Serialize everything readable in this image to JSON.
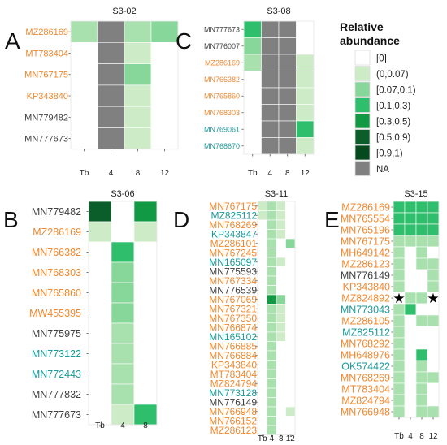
{
  "colors": {
    "c0": "#ffffff",
    "c1": "#cdebc7",
    "c2": "#a8e0ae",
    "c3": "#88d79a",
    "c4": "#2fbe6b",
    "c5": "#119944",
    "c6": "#0b5e2a",
    "na": "#808080",
    "orange": "#f0892f",
    "teal": "#1a9a9a",
    "black": "#404040"
  },
  "legend": {
    "title_line1": "Relative",
    "title_line2": "abundance",
    "items": [
      {
        "label": "[0]",
        "color": "c0"
      },
      {
        "label": "(0,0.07)",
        "color": "c1"
      },
      {
        "label": "[0.07,0.1)",
        "color": "c3"
      },
      {
        "label": "[0.1,0.3)",
        "color": "c4"
      },
      {
        "label": "[0.3,0.5)",
        "color": "c5"
      },
      {
        "label": "[0.5,0.9)",
        "color": "c6"
      },
      {
        "label": "[0.9,1)",
        "color": "#044a1e"
      },
      {
        "label": "NA",
        "color": "na"
      }
    ]
  },
  "panels": [
    {
      "letter": "A",
      "title": "S3-02",
      "columns": [
        "Tb",
        "4",
        "8",
        "12"
      ],
      "rows": [
        {
          "label": "MZ286169",
          "color": "orange",
          "cells": [
            "c2",
            "na",
            "c2",
            "c3"
          ]
        },
        {
          "label": "MT783404",
          "color": "orange",
          "cells": [
            "c0",
            "na",
            "c1",
            "c0"
          ]
        },
        {
          "label": "MN767175",
          "color": "orange",
          "cells": [
            "c0",
            "na",
            "c3",
            "c0"
          ]
        },
        {
          "label": "KP343840",
          "color": "orange",
          "cells": [
            "c0",
            "na",
            "c1",
            "c0"
          ]
        },
        {
          "label": "MN779482",
          "color": "black",
          "cells": [
            "c0",
            "na",
            "c1",
            "c0"
          ]
        },
        {
          "label": "MN777673",
          "color": "black",
          "cells": [
            "c0",
            "na",
            "c1",
            "c0"
          ]
        }
      ]
    },
    {
      "letter": "C",
      "title": "S3-08",
      "columns": [
        "Tb",
        "4",
        "8",
        "12"
      ],
      "rows": [
        {
          "label": "MN777673",
          "color": "black",
          "cells": [
            "c4",
            "na",
            "na",
            "c0"
          ]
        },
        {
          "label": "MN776007",
          "color": "black",
          "cells": [
            "c3",
            "na",
            "na",
            "c0"
          ]
        },
        {
          "label": "MZ286169",
          "color": "orange",
          "cells": [
            "c2",
            "na",
            "na",
            "c1"
          ]
        },
        {
          "label": "MN766382",
          "color": "orange",
          "cells": [
            "c0",
            "na",
            "na",
            "c1"
          ]
        },
        {
          "label": "MN765860",
          "color": "orange",
          "cells": [
            "c0",
            "na",
            "na",
            "c1"
          ]
        },
        {
          "label": "MN768303",
          "color": "orange",
          "cells": [
            "c0",
            "na",
            "na",
            "c1"
          ]
        },
        {
          "label": "MN769061",
          "color": "teal",
          "cells": [
            "c0",
            "na",
            "na",
            "c4"
          ]
        },
        {
          "label": "MN768670",
          "color": "teal",
          "cells": [
            "c0",
            "na",
            "na",
            "c1"
          ]
        }
      ]
    },
    {
      "letter": "B",
      "title": "S3-06",
      "columns": [
        "Tb",
        "4",
        "8"
      ],
      "rows": [
        {
          "label": "MN779482",
          "color": "black",
          "cells": [
            "c6",
            "c0",
            "c5"
          ]
        },
        {
          "label": "MZ286169",
          "color": "orange",
          "cells": [
            "c1",
            "c0",
            "c1"
          ]
        },
        {
          "label": "MN766382",
          "color": "orange",
          "cells": [
            "c0",
            "c4",
            "c0"
          ]
        },
        {
          "label": "MN768303",
          "color": "orange",
          "cells": [
            "c0",
            "c3",
            "c0"
          ]
        },
        {
          "label": "MN765860",
          "color": "orange",
          "cells": [
            "c0",
            "c3",
            "c0"
          ]
        },
        {
          "label": "MW455395",
          "color": "orange",
          "cells": [
            "c0",
            "c3",
            "c0"
          ]
        },
        {
          "label": "MN775975",
          "color": "black",
          "cells": [
            "c0",
            "c2",
            "c0"
          ]
        },
        {
          "label": "MN773122",
          "color": "teal",
          "cells": [
            "c0",
            "c2",
            "c0"
          ]
        },
        {
          "label": "MN772443",
          "color": "teal",
          "cells": [
            "c0",
            "c2",
            "c0"
          ]
        },
        {
          "label": "MN777832",
          "color": "black",
          "cells": [
            "c0",
            "c2",
            "c0"
          ]
        },
        {
          "label": "MN777673",
          "color": "black",
          "cells": [
            "c0",
            "c1",
            "c4"
          ]
        }
      ]
    },
    {
      "letter": "D",
      "title": "S3-11",
      "columns": [
        "Tb",
        "4",
        "8",
        "12"
      ],
      "rows": [
        {
          "label": "MN767175",
          "color": "orange",
          "cells": [
            "c1",
            "c2",
            "c1",
            "c0"
          ]
        },
        {
          "label": "MZ825112",
          "color": "teal",
          "cells": [
            "c1",
            "c2",
            "c1",
            "c0"
          ]
        },
        {
          "label": "MN768269",
          "color": "orange",
          "cells": [
            "c0",
            "c2",
            "c1",
            "c0"
          ]
        },
        {
          "label": "KP343847",
          "color": "teal",
          "cells": [
            "c0",
            "c2",
            "c1",
            "c0"
          ]
        },
        {
          "label": "MZ286101",
          "color": "orange",
          "cells": [
            "c0",
            "c2",
            "c0",
            "c3"
          ]
        },
        {
          "label": "MN767245",
          "color": "orange",
          "cells": [
            "c0",
            "c2",
            "c0",
            "c0"
          ]
        },
        {
          "label": "MN165097",
          "color": "teal",
          "cells": [
            "c0",
            "c2",
            "c1",
            "c0"
          ]
        },
        {
          "label": "MN775593",
          "color": "black",
          "cells": [
            "c0",
            "c2",
            "c0",
            "c0"
          ]
        },
        {
          "label": "MN767334",
          "color": "orange",
          "cells": [
            "c0",
            "c2",
            "c0",
            "c0"
          ]
        },
        {
          "label": "MN776539",
          "color": "black",
          "cells": [
            "c0",
            "c2",
            "c0",
            "c0"
          ]
        },
        {
          "label": "MN767069",
          "color": "orange",
          "cells": [
            "c0",
            "c5",
            "c3",
            "c0"
          ]
        },
        {
          "label": "MN767321",
          "color": "orange",
          "cells": [
            "c0",
            "c2",
            "c1",
            "c0"
          ]
        },
        {
          "label": "MN767350",
          "color": "orange",
          "cells": [
            "c0",
            "c2",
            "c1",
            "c0"
          ]
        },
        {
          "label": "MN766874",
          "color": "orange",
          "cells": [
            "c0",
            "c2",
            "c1",
            "c0"
          ]
        },
        {
          "label": "MN165102",
          "color": "teal",
          "cells": [
            "c0",
            "c2",
            "c1",
            "c0"
          ]
        },
        {
          "label": "MN766885",
          "color": "orange",
          "cells": [
            "c0",
            "c2",
            "c0",
            "c0"
          ]
        },
        {
          "label": "MN766884",
          "color": "orange",
          "cells": [
            "c0",
            "c2",
            "c0",
            "c0"
          ]
        },
        {
          "label": "KP343840",
          "color": "orange",
          "cells": [
            "c0",
            "c2",
            "c0",
            "c0"
          ]
        },
        {
          "label": "MT783404",
          "color": "orange",
          "cells": [
            "c0",
            "c2",
            "c0",
            "c0"
          ]
        },
        {
          "label": "MZ824794",
          "color": "orange",
          "cells": [
            "c0",
            "c2",
            "c0",
            "c0"
          ]
        },
        {
          "label": "MN773128",
          "color": "teal",
          "cells": [
            "c0",
            "c2",
            "c0",
            "c0"
          ]
        },
        {
          "label": "MN776149",
          "color": "black",
          "cells": [
            "c0",
            "c2",
            "c0",
            "c0"
          ]
        },
        {
          "label": "MN766948",
          "color": "orange",
          "cells": [
            "c0",
            "c2",
            "c0",
            "c1"
          ]
        },
        {
          "label": "MN766152",
          "color": "orange",
          "cells": [
            "c0",
            "c2",
            "c0",
            "c0"
          ]
        },
        {
          "label": "MZ286123",
          "color": "orange",
          "cells": [
            "c0",
            "c2",
            "c0",
            "c0"
          ]
        }
      ]
    },
    {
      "letter": "E",
      "title": "S3-15",
      "columns": [
        "Tb",
        "4",
        "8",
        "12"
      ],
      "rows": [
        {
          "label": "MZ286169",
          "color": "orange",
          "cells": [
            "c4",
            "c4",
            "c4",
            "c4"
          ]
        },
        {
          "label": "MN765554",
          "color": "orange",
          "cells": [
            "c4",
            "c4",
            "c4",
            "c4"
          ]
        },
        {
          "label": "MN765196",
          "color": "orange",
          "cells": [
            "c4",
            "c4",
            "c4",
            "c4"
          ]
        },
        {
          "label": "MN767175",
          "color": "orange",
          "cells": [
            "c2",
            "c2",
            "c2",
            "c2"
          ]
        },
        {
          "label": "MH649142",
          "color": "orange",
          "cells": [
            "c2",
            "c0",
            "c2",
            "c0"
          ]
        },
        {
          "label": "MZ286123",
          "color": "orange",
          "cells": [
            "c2",
            "c0",
            "c2",
            "c2"
          ]
        },
        {
          "label": "MN776149",
          "color": "black",
          "cells": [
            "c2",
            "c0",
            "c0",
            "c2"
          ]
        },
        {
          "label": "KP343840",
          "color": "orange",
          "cells": [
            "c2",
            "c0",
            "c0",
            "c2"
          ]
        },
        {
          "label": "MZ824892",
          "color": "orange",
          "cells": [
            "c0",
            "c2",
            "c2",
            "c0"
          ]
        },
        {
          "label": "MN773043",
          "color": "teal",
          "cells": [
            "c2",
            "c4",
            "c0",
            "c0"
          ]
        },
        {
          "label": "MZ286105",
          "color": "orange",
          "cells": [
            "c2",
            "c0",
            "c2",
            "c2"
          ]
        },
        {
          "label": "MZ825112",
          "color": "teal",
          "cells": [
            "c2",
            "c0",
            "c0",
            "c0"
          ]
        },
        {
          "label": "MN768292",
          "color": "orange",
          "cells": [
            "c2",
            "c0",
            "c0",
            "c0"
          ]
        },
        {
          "label": "MH648976",
          "color": "orange",
          "cells": [
            "c2",
            "c0",
            "c4",
            "c0"
          ]
        },
        {
          "label": "OK574422",
          "color": "teal",
          "cells": [
            "c2",
            "c0",
            "c2",
            "c0"
          ]
        },
        {
          "label": "MN768269",
          "color": "orange",
          "cells": [
            "c2",
            "c0",
            "c2",
            "c2"
          ]
        },
        {
          "label": "MT783404",
          "color": "orange",
          "cells": [
            "c2",
            "c0",
            "c2",
            "c0"
          ]
        },
        {
          "label": "MZ824794",
          "color": "orange",
          "cells": [
            "c2",
            "c0",
            "c2",
            "c0"
          ]
        },
        {
          "label": "MN766948",
          "color": "orange",
          "cells": [
            "c2",
            "c0",
            "c2",
            "c2"
          ]
        }
      ],
      "stars": [
        {
          "row": 8,
          "col": 0,
          "symbol": "★"
        },
        {
          "row": 8,
          "col": 3,
          "symbol": "★"
        }
      ]
    }
  ]
}
